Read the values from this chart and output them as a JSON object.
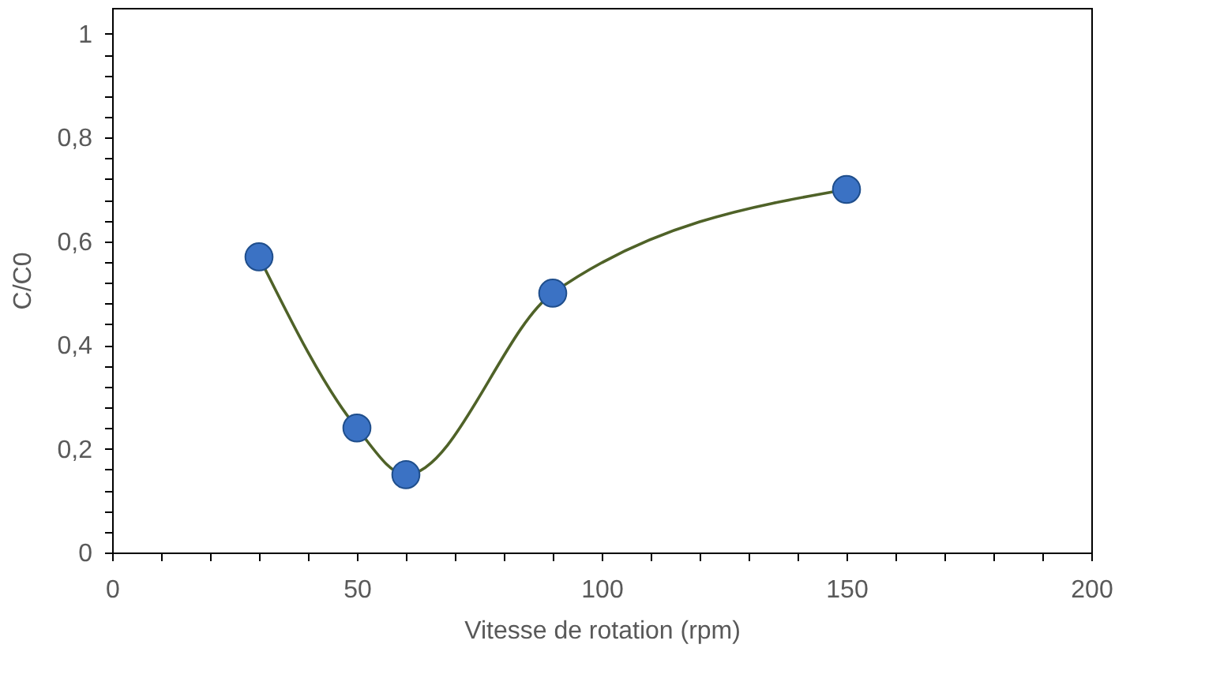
{
  "chart_data": {
    "type": "line",
    "xlabel": "Vitesse de rotation (rpm)",
    "ylabel": "C/C0",
    "x": [
      30,
      50,
      60,
      90,
      150
    ],
    "series": [
      {
        "color": "#4f6228",
        "values": [
          0.57,
          0.24,
          0.15,
          0.5,
          0.7
        ]
      }
    ],
    "marker": "circle",
    "line_style": "solid",
    "grid": false,
    "xlim": [
      0,
      200
    ],
    "xticks": [
      0,
      {
        "value": 10,
        "label": null
      },
      {
        "value": 20,
        "label": null
      },
      {
        "value": 30,
        "label": null
      },
      {
        "value": 40,
        "label": null
      },
      50,
      {
        "value": 60,
        "label": null
      },
      {
        "value": 70,
        "label": null
      },
      {
        "value": 80,
        "label": null
      },
      {
        "value": 90,
        "label": null
      },
      100,
      {
        "value": 110,
        "label": null
      },
      {
        "value": 120,
        "label": null
      },
      {
        "value": 130,
        "label": null
      },
      {
        "value": 140,
        "label": null
      },
      150,
      {
        "value": 160,
        "label": null
      },
      {
        "value": 170,
        "label": null
      },
      {
        "value": 180,
        "label": null
      },
      {
        "value": 190,
        "label": null
      },
      200
    ],
    "ylim": [
      0,
      1.05
    ],
    "yticks": [
      0,
      {
        "value": 0.04,
        "label": null
      },
      {
        "value": 0.08,
        "label": null
      },
      {
        "value": 0.12,
        "label": null
      },
      {
        "value": 0.16,
        "label": null
      },
      {
        "value": 0.2,
        "label": "0,2"
      },
      {
        "value": 0.24,
        "label": null
      },
      {
        "value": 0.28,
        "label": null
      },
      {
        "value": 0.32,
        "label": null
      },
      {
        "value": 0.36,
        "label": null
      },
      {
        "value": 0.4,
        "label": "0,4"
      },
      {
        "value": 0.44,
        "label": null
      },
      {
        "value": 0.48,
        "label": null
      },
      {
        "value": 0.52,
        "label": null
      },
      {
        "value": 0.56,
        "label": null
      },
      {
        "value": 0.6,
        "label": "0,6"
      },
      {
        "value": 0.64,
        "label": null
      },
      {
        "value": 0.68,
        "label": null
      },
      {
        "value": 0.72,
        "label": null
      },
      {
        "value": 0.76,
        "label": null
      },
      {
        "value": 0.8,
        "label": "0,8"
      },
      {
        "value": 0.84,
        "label": null
      },
      {
        "value": 0.88,
        "label": null
      },
      {
        "value": 0.92,
        "label": null
      },
      {
        "value": 0.96,
        "label": null
      },
      1
    ]
  }
}
